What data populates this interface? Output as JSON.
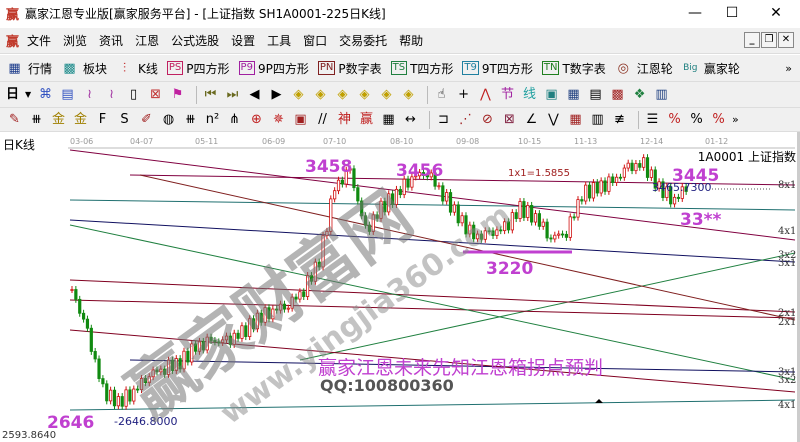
{
  "window": {
    "title": "赢家江恩专业版[赢家服务平台] - [上证指数  SH1A0001-225日K线]",
    "app_icon": "赢",
    "controls": [
      "minimize",
      "maximize",
      "close"
    ]
  },
  "menu": {
    "icon": "赢",
    "items": [
      "文件",
      "浏览",
      "资讯",
      "江恩",
      "公式选股",
      "设置",
      "工具",
      "窗口",
      "交易委托",
      "帮助"
    ]
  },
  "toolbar1": {
    "items": [
      {
        "icon": "grid-table-icon",
        "label": "行情"
      },
      {
        "icon": "blocks-icon",
        "label": "板块"
      },
      {
        "icon": "candles-icon",
        "label": "K线"
      },
      {
        "icon": "PS",
        "label": "P四方形"
      },
      {
        "icon": "P9",
        "label": "9P四方形"
      },
      {
        "icon": "PN",
        "label": "P数字表"
      },
      {
        "icon": "TS",
        "label": "T四方形"
      },
      {
        "icon": "T9",
        "label": "9T四方形"
      },
      {
        "icon": "TN",
        "label": "T数字表"
      },
      {
        "icon": "target-wheel-icon",
        "label": "江恩轮"
      },
      {
        "icon": "Big",
        "label": "赢家轮"
      }
    ],
    "more": "»"
  },
  "toolbar2": {
    "period": "日"
  },
  "toolbar3": {
    "more": "»"
  },
  "chart_panel": {
    "period_label": "日K线",
    "stock_label": "1A0001  上证指数",
    "bottom_value": "2593.8640",
    "watermark": "赢家财富网",
    "watermark_url": "www.yingjia360.com",
    "colors": {
      "up": "#d01010",
      "down": "#108a10",
      "annotation": "#c040d0"
    }
  },
  "chart_data": {
    "type": "candlestick",
    "x_ticks": [
      "03-06",
      "04-07",
      "05-11",
      "06-09",
      "07-10",
      "08-10",
      "09-08",
      "10-15",
      "11-13",
      "12-14",
      "01-12"
    ],
    "approx_closes": [
      3050,
      2900,
      2700,
      2660,
      2700,
      2760,
      2780,
      2800,
      2850,
      2870,
      2870,
      2900,
      2950,
      2980,
      3000,
      3050,
      3150,
      3400,
      3458,
      3250,
      3330,
      3380,
      3440,
      3456,
      3380,
      3300,
      3230,
      3240,
      3260,
      3330,
      3300,
      3230,
      3250,
      3380,
      3400,
      3420,
      3470,
      3480,
      3400,
      3360,
      3420
    ],
    "annotations": {
      "high1": "3458",
      "high2": "3456",
      "high3": "3445",
      "low": "3220",
      "low2": "2646",
      "target": "33**",
      "price_tag_high": "3465.7300",
      "price_tag_low": "2646.8000",
      "gann_ratio": "1x1=1.5855",
      "headline": "赢家江恩未来先知江恩箱拐点预判",
      "qq": "QQ:100800360"
    },
    "gann_labels": [
      "8x1",
      "4x1",
      "3x2",
      "3x1",
      "2x1",
      "2x1",
      "3x1",
      "3x2",
      "4x1"
    ]
  }
}
